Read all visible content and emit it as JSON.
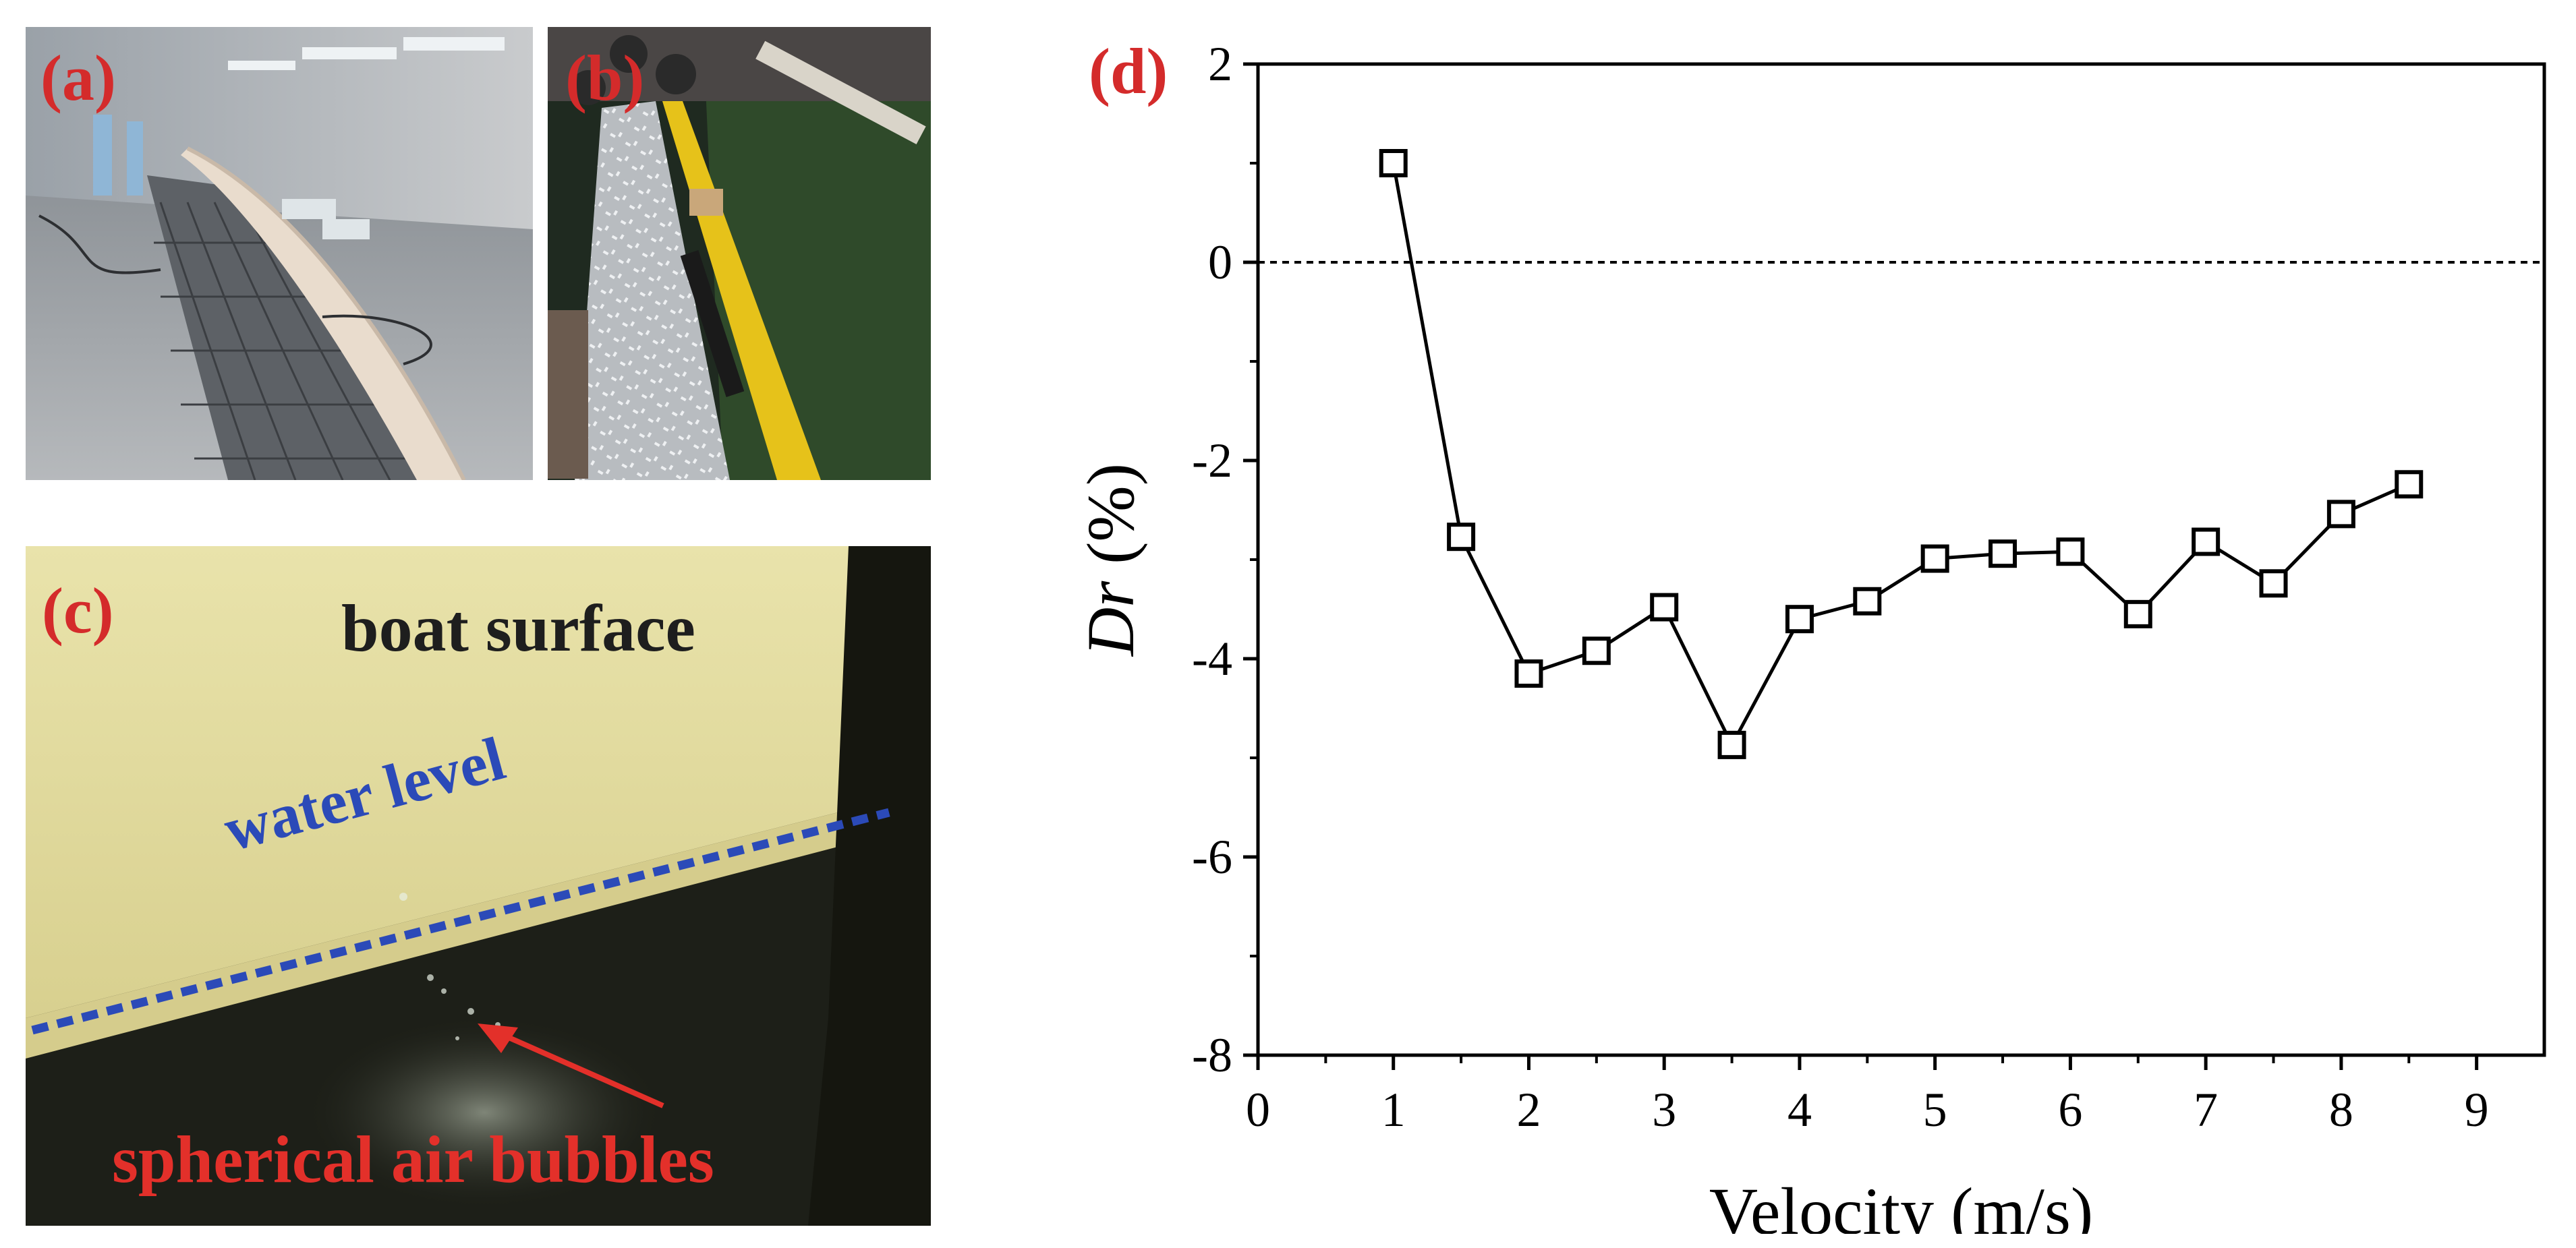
{
  "panels": {
    "a": {
      "label": "(a)"
    },
    "b": {
      "label": "(b)"
    },
    "c": {
      "label": "(c)",
      "boat_surface_text": "boat surface",
      "water_level_text": "water level",
      "bubbles_text": "spherical air bubbles"
    },
    "d": {
      "label": "(d)"
    }
  },
  "colors": {
    "panel_label": "#d42b2b",
    "water_level": "#2b4ab8",
    "bubbles_text": "#e3302a",
    "boat_text": "#1e1e1e",
    "chart_line": "#000000"
  },
  "chart_data": {
    "type": "line",
    "xlabel": "Velocity (m/s)",
    "ylabel_italic": "Dr",
    "ylabel_rest": " (%)",
    "xlim": [
      0,
      9.5
    ],
    "ylim": [
      -8,
      2
    ],
    "xticks": [
      0,
      1,
      2,
      3,
      4,
      5,
      6,
      7,
      8,
      9
    ],
    "yticks": [
      -8,
      -6,
      -4,
      -2,
      0,
      2
    ],
    "reference_line_y": 0,
    "marker": "open-square",
    "x": [
      1,
      1.5,
      2,
      2.5,
      3,
      3.5,
      4,
      4.5,
      5,
      5.5,
      6,
      6.5,
      7,
      7.5,
      8,
      8.5
    ],
    "y": [
      1.0,
      -2.77,
      -4.15,
      -3.92,
      -3.48,
      -4.87,
      -3.6,
      -3.42,
      -2.99,
      -2.94,
      -2.92,
      -3.55,
      -2.82,
      -3.24,
      -2.54,
      -2.24
    ]
  }
}
